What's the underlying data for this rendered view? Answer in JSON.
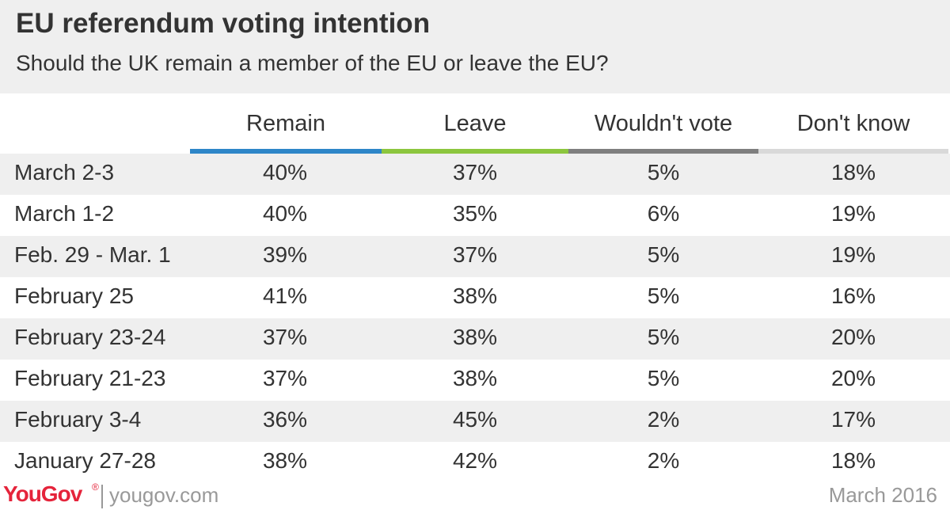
{
  "title": "EU referendum voting intention",
  "subtitle": "Should the UK remain a member of the EU or leave the EU?",
  "colors": {
    "remain": "#2e86c8",
    "leave": "#8cc63e",
    "wouldnt_vote": "#7f7f7f",
    "dont_know": "#d9d9d9"
  },
  "chart_data": {
    "type": "table",
    "columns": [
      "Remain",
      "Leave",
      "Wouldn't vote",
      "Don't know"
    ],
    "rows": [
      {
        "label": "March 2-3",
        "values": [
          "40%",
          "37%",
          "5%",
          "18%"
        ]
      },
      {
        "label": "March 1-2",
        "values": [
          "40%",
          "35%",
          "6%",
          "19%"
        ]
      },
      {
        "label": "Feb. 29 - Mar. 1",
        "values": [
          "39%",
          "37%",
          "5%",
          "19%"
        ]
      },
      {
        "label": "February 25",
        "values": [
          "41%",
          "38%",
          "5%",
          "16%"
        ]
      },
      {
        "label": "February 23-24",
        "values": [
          "37%",
          "38%",
          "5%",
          "20%"
        ]
      },
      {
        "label": "February 21-23",
        "values": [
          "37%",
          "38%",
          "5%",
          "20%"
        ]
      },
      {
        "label": "February 3-4",
        "values": [
          "36%",
          "45%",
          "2%",
          "17%"
        ]
      },
      {
        "label": "January 27-28",
        "values": [
          "38%",
          "42%",
          "2%",
          "18%"
        ]
      }
    ]
  },
  "footer": {
    "logo": "YouGov",
    "registered": "®",
    "url": "yougov.com",
    "date": "March 2016"
  }
}
